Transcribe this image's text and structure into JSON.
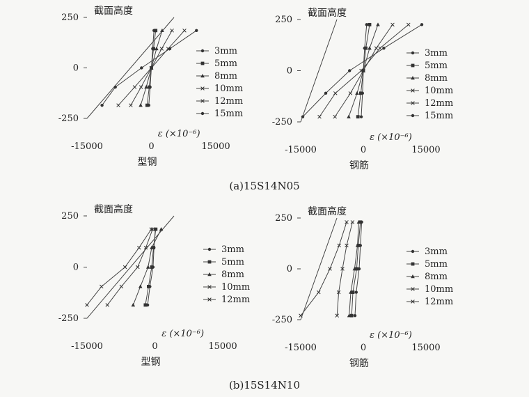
{
  "captions": [
    "(a)15S14N05",
    "(b)15S14N10"
  ],
  "chart_data": [
    {
      "type": "line",
      "panel": "a-left",
      "ylabel": "截面高度",
      "xlabel": "型钢",
      "x_axis_name": "ε (×10⁻⁶)",
      "xticks": [
        "-15000",
        "0",
        "15000"
      ],
      "yticks": [
        "250",
        "0",
        "-250"
      ],
      "xlim": [
        -15000,
        15000
      ],
      "ylim": [
        -250,
        250
      ],
      "grid": false,
      "legend_position": "right",
      "series": [
        {
          "name": "3mm",
          "marker": "dot",
          "points": [
            [
              -600,
              -185
            ],
            [
              -300,
              -95
            ],
            [
              0,
              0
            ],
            [
              300,
              95
            ],
            [
              600,
              185
            ]
          ]
        },
        {
          "name": "5mm",
          "marker": "square",
          "points": [
            [
              -1000,
              -185
            ],
            [
              -500,
              -95
            ],
            [
              0,
              0
            ],
            [
              500,
              95
            ],
            [
              1000,
              185
            ]
          ]
        },
        {
          "name": "8mm",
          "marker": "triangle",
          "points": [
            [
              -2500,
              -185
            ],
            [
              -1200,
              -95
            ],
            [
              0,
              0
            ],
            [
              1200,
              95
            ],
            [
              2500,
              185
            ]
          ]
        },
        {
          "name": "10mm",
          "marker": "x",
          "points": [
            [
              -4800,
              -185
            ],
            [
              -2400,
              -95
            ],
            [
              0,
              0
            ],
            [
              2400,
              95
            ],
            [
              4800,
              185
            ]
          ]
        },
        {
          "name": "12mm",
          "marker": "x",
          "points": [
            [
              -7700,
              -185
            ],
            [
              -3900,
              -95
            ],
            [
              0,
              0
            ],
            [
              3900,
              95
            ],
            [
              7700,
              185
            ]
          ]
        },
        {
          "name": "15mm",
          "marker": "dot",
          "points": [
            [
              -11500,
              -185
            ],
            [
              -8400,
              -95
            ],
            [
              -2300,
              0
            ],
            [
              4300,
              95
            ],
            [
              10500,
              185
            ]
          ]
        }
      ]
    },
    {
      "type": "line",
      "panel": "a-right",
      "ylabel": "截面高度",
      "xlabel": "钢筋",
      "x_axis_name": "ε (×10⁻⁶)",
      "xticks": [
        "-15000",
        "0",
        "15000"
      ],
      "yticks": [
        "250",
        "0",
        "-250"
      ],
      "xlim": [
        -15000,
        15000
      ],
      "ylim": [
        -250,
        250
      ],
      "grid": false,
      "legend_position": "right",
      "series": [
        {
          "name": "3mm",
          "marker": "dot",
          "points": [
            [
              -500,
              -225
            ],
            [
              -200,
              -110
            ],
            [
              0,
              0
            ],
            [
              300,
              110
            ],
            [
              800,
              225
            ]
          ]
        },
        {
          "name": "5mm",
          "marker": "square",
          "points": [
            [
              -1300,
              -225
            ],
            [
              -600,
              -110
            ],
            [
              0,
              0
            ],
            [
              600,
              110
            ],
            [
              1500,
              225
            ]
          ]
        },
        {
          "name": "8mm",
          "marker": "triangle",
          "points": [
            [
              -3500,
              -225
            ],
            [
              -1500,
              -110
            ],
            [
              0,
              0
            ],
            [
              1500,
              110
            ],
            [
              3500,
              225
            ]
          ]
        },
        {
          "name": "10mm",
          "marker": "x",
          "points": [
            [
              -6800,
              -225
            ],
            [
              -3100,
              -110
            ],
            [
              0,
              0
            ],
            [
              3100,
              110
            ],
            [
              7000,
              225
            ]
          ]
        },
        {
          "name": "12mm",
          "marker": "x",
          "points": [
            [
              -10500,
              -225
            ],
            [
              -6700,
              -110
            ],
            [
              -500,
              0
            ],
            [
              4000,
              110
            ],
            [
              10800,
              225
            ]
          ]
        },
        {
          "name": "15mm",
          "marker": "dot",
          "points": [
            [
              -14500,
              -225
            ],
            [
              -9000,
              -110
            ],
            [
              -3300,
              0
            ],
            [
              4900,
              110
            ],
            [
              14000,
              225
            ]
          ]
        }
      ]
    },
    {
      "type": "line",
      "panel": "b-left",
      "ylabel": "截面高度",
      "xlabel": "型钢",
      "x_axis_name": "ε (×10⁻⁶)",
      "xticks": [
        "-15000",
        "0",
        "15000"
      ],
      "yticks": [
        "250",
        "0",
        "-250"
      ],
      "xlim": [
        -15000,
        15000
      ],
      "ylim": [
        -250,
        250
      ],
      "grid": false,
      "legend_position": "right",
      "series": [
        {
          "name": "3mm",
          "marker": "dot",
          "points": [
            [
              -1600,
              -185
            ],
            [
              -1100,
              -95
            ],
            [
              -400,
              0
            ],
            [
              -200,
              95
            ],
            [
              100,
              185
            ]
          ]
        },
        {
          "name": "5mm",
          "marker": "square",
          "points": [
            [
              -2100,
              -185
            ],
            [
              -1400,
              -95
            ],
            [
              -700,
              0
            ],
            [
              -300,
              95
            ],
            [
              200,
              185
            ]
          ]
        },
        {
          "name": "8mm",
          "marker": "triangle",
          "points": [
            [
              -4800,
              -185
            ],
            [
              -3200,
              -95
            ],
            [
              -1500,
              0
            ],
            [
              -700,
              95
            ],
            [
              1400,
              185
            ]
          ]
        },
        {
          "name": "10mm",
          "marker": "x",
          "points": [
            [
              -10500,
              -185
            ],
            [
              -7400,
              -95
            ],
            [
              -3800,
              0
            ],
            [
              -2000,
              95
            ],
            [
              -500,
              185
            ]
          ]
        },
        {
          "name": "12mm",
          "marker": "x",
          "points": [
            [
              -15000,
              -185
            ],
            [
              -11800,
              -95
            ],
            [
              -6600,
              0
            ],
            [
              -3500,
              95
            ],
            [
              -800,
              185
            ]
          ]
        }
      ]
    },
    {
      "type": "line",
      "panel": "b-right",
      "ylabel": "截面高度",
      "xlabel": "钢筋",
      "x_axis_name": "ε (×10⁻⁶)",
      "xticks": [
        "-15000",
        "0",
        "15000"
      ],
      "yticks": [
        "250",
        "0",
        "-250"
      ],
      "xlim": [
        -15000,
        15000
      ],
      "ylim": [
        -250,
        250
      ],
      "grid": false,
      "legend_position": "right",
      "series": [
        {
          "name": "3mm",
          "marker": "dot",
          "points": [
            [
              -2000,
              -230
            ],
            [
              -1700,
              -115
            ],
            [
              -1000,
              0
            ],
            [
              -700,
              115
            ],
            [
              -400,
              230
            ]
          ]
        },
        {
          "name": "5mm",
          "marker": "square",
          "points": [
            [
              -2800,
              -230
            ],
            [
              -2500,
              -115
            ],
            [
              -1600,
              0
            ],
            [
              -1200,
              115
            ],
            [
              -700,
              230
            ]
          ]
        },
        {
          "name": "8mm",
          "marker": "triangle",
          "points": [
            [
              -3400,
              -230
            ],
            [
              -3000,
              -115
            ],
            [
              -2100,
              0
            ],
            [
              -1400,
              115
            ],
            [
              -1100,
              230
            ]
          ]
        },
        {
          "name": "10mm",
          "marker": "x",
          "points": [
            [
              -6300,
              -230
            ],
            [
              -5900,
              -115
            ],
            [
              -5000,
              0
            ],
            [
              -4000,
              115
            ],
            [
              -2600,
              230
            ]
          ]
        },
        {
          "name": "12mm",
          "marker": "x",
          "points": [
            [
              -15000,
              -230
            ],
            [
              -10700,
              -115
            ],
            [
              -8000,
              0
            ],
            [
              -5800,
              115
            ],
            [
              -4000,
              230
            ]
          ]
        }
      ]
    }
  ]
}
